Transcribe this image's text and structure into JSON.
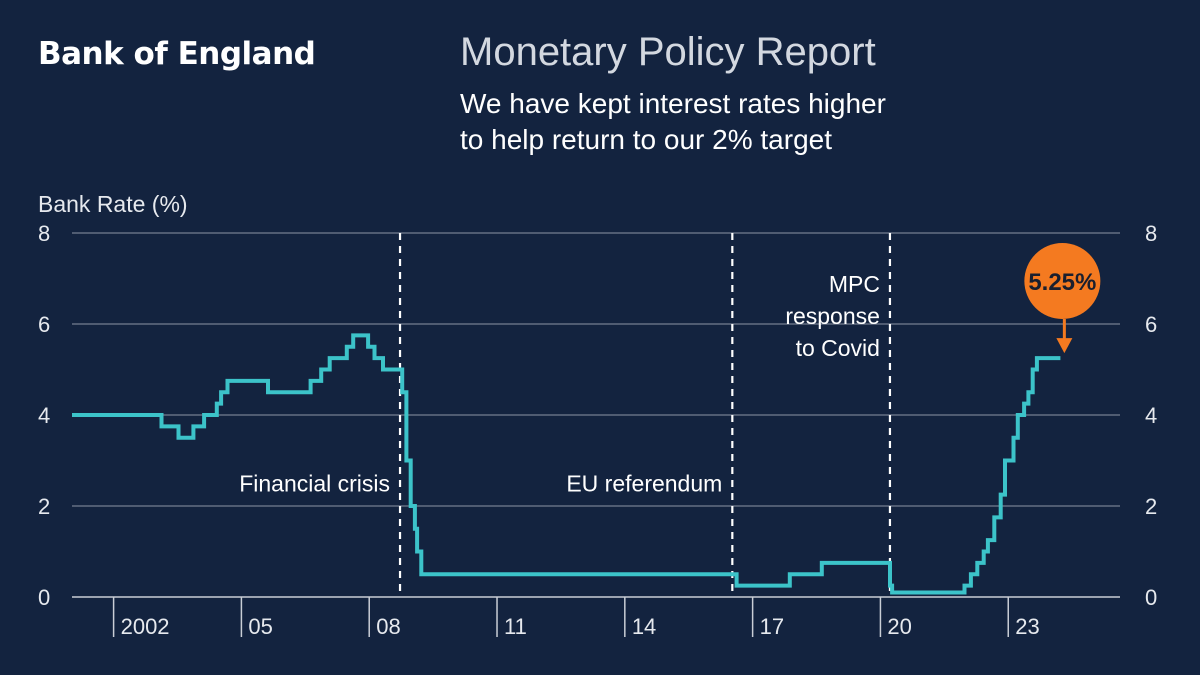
{
  "header": {
    "brand": "Bank of England",
    "report_title": "Monetary Policy Report",
    "headline_line1": "We have kept interest rates higher",
    "headline_line2": "to help return to our 2% target"
  },
  "colors": {
    "background": "#13233f",
    "series": "#3cc3c9",
    "highlight": "#f47a20",
    "grid": "#8d96a6"
  },
  "chart_data": {
    "type": "line",
    "step": true,
    "ylabel": "Bank Rate (%)",
    "ylim": [
      0,
      8
    ],
    "yticks": [
      0,
      2,
      4,
      6,
      8
    ],
    "y_axis_sides": [
      "left",
      "right"
    ],
    "xlim": [
      2001.0,
      2025.6
    ],
    "x_ticks": [
      {
        "value": 2002,
        "label": "2002"
      },
      {
        "value": 2005,
        "label": "05"
      },
      {
        "value": 2008,
        "label": "08"
      },
      {
        "value": 2011,
        "label": "11"
      },
      {
        "value": 2014,
        "label": "14"
      },
      {
        "value": 2017,
        "label": "17"
      },
      {
        "value": 2020,
        "label": "20"
      },
      {
        "value": 2023,
        "label": "23"
      }
    ],
    "grid": true,
    "series": [
      {
        "points": [
          [
            2001.0,
            4.0
          ],
          [
            2003.1,
            3.75
          ],
          [
            2003.5,
            3.5
          ],
          [
            2003.85,
            3.75
          ],
          [
            2004.1,
            4.0
          ],
          [
            2004.4,
            4.25
          ],
          [
            2004.5,
            4.5
          ],
          [
            2004.65,
            4.75
          ],
          [
            2005.6,
            4.5
          ],
          [
            2006.6,
            4.75
          ],
          [
            2006.85,
            5.0
          ],
          [
            2007.05,
            5.25
          ],
          [
            2007.45,
            5.5
          ],
          [
            2007.6,
            5.75
          ],
          [
            2007.95,
            5.5
          ],
          [
            2008.1,
            5.25
          ],
          [
            2008.3,
            5.0
          ],
          [
            2008.75,
            4.5
          ],
          [
            2008.85,
            3.0
          ],
          [
            2008.95,
            2.0
          ],
          [
            2009.05,
            1.5
          ],
          [
            2009.1,
            1.0
          ],
          [
            2009.2,
            0.5
          ],
          [
            2016.6,
            0.25
          ],
          [
            2017.85,
            0.5
          ],
          [
            2018.6,
            0.75
          ],
          [
            2020.2,
            0.25
          ],
          [
            2020.25,
            0.1
          ],
          [
            2021.95,
            0.25
          ],
          [
            2022.1,
            0.5
          ],
          [
            2022.25,
            0.75
          ],
          [
            2022.4,
            1.0
          ],
          [
            2022.5,
            1.25
          ],
          [
            2022.65,
            1.75
          ],
          [
            2022.8,
            2.25
          ],
          [
            2022.9,
            3.0
          ],
          [
            2023.1,
            3.5
          ],
          [
            2023.2,
            4.0
          ],
          [
            2023.35,
            4.25
          ],
          [
            2023.45,
            4.5
          ],
          [
            2023.55,
            5.0
          ],
          [
            2023.65,
            5.25
          ],
          [
            2024.2,
            5.25
          ]
        ]
      }
    ],
    "events": [
      {
        "x": 2008.7,
        "label": "Financial crisis",
        "label_side": "left",
        "label_y": 2.5
      },
      {
        "x": 2016.5,
        "label": "EU referendum",
        "label_side": "left",
        "label_y": 2.5
      },
      {
        "x": 2020.2,
        "lines": [
          "MPC",
          "response",
          "to Covid"
        ],
        "label_side": "left",
        "label_y": 6.7
      }
    ],
    "callout": {
      "x": 2024.2,
      "y": 5.25,
      "label": "5.25%"
    }
  }
}
